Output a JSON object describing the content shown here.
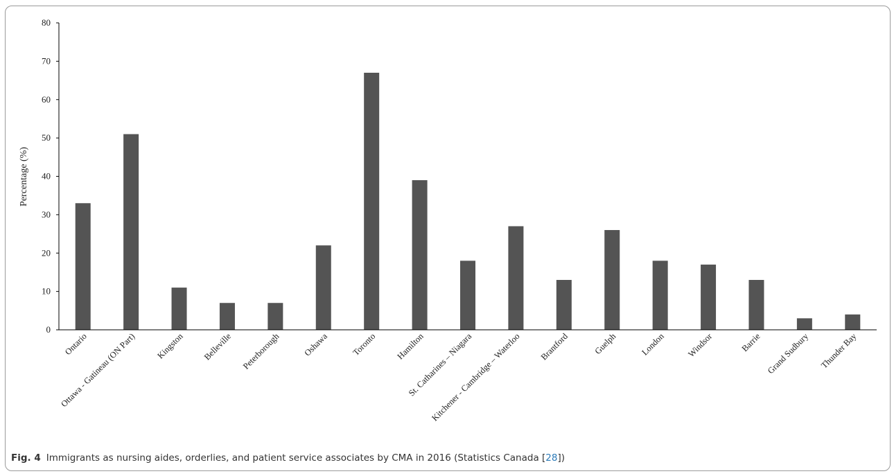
{
  "caption": {
    "fig_label": "Fig. 4",
    "text_before_ref": "Immigrants as nursing aides, orderlies, and patient service associates by CMA in 2016 (Statistics Canada [",
    "ref": "28",
    "text_after_ref": "])"
  },
  "colors": {
    "bar": "#545454",
    "axis": "#000000"
  },
  "chart_data": {
    "type": "bar",
    "title": "",
    "xlabel": "",
    "ylabel": "Percentage (%)",
    "ylim": [
      0,
      80
    ],
    "yticks": [
      0,
      10,
      20,
      30,
      40,
      50,
      60,
      70,
      80
    ],
    "grid": false,
    "legend": "none",
    "categories": [
      "Ontario",
      "Ottawa - Gatineau (ON Part)",
      "Kingston",
      "Belleville",
      "Peterborough",
      "Oshawa",
      "Toronto",
      "Hamilton",
      "St. Catharines – Niagara",
      "Kitchener - Cambridge – Waterloo",
      "Brantford",
      "Guelph",
      "London",
      "Windsor",
      "Barrie",
      "Grand Sudbury",
      "Thunder Bay"
    ],
    "values": [
      33,
      51,
      11,
      7,
      7,
      22,
      67,
      39,
      18,
      27,
      13,
      26,
      18,
      17,
      13,
      3,
      4
    ]
  }
}
